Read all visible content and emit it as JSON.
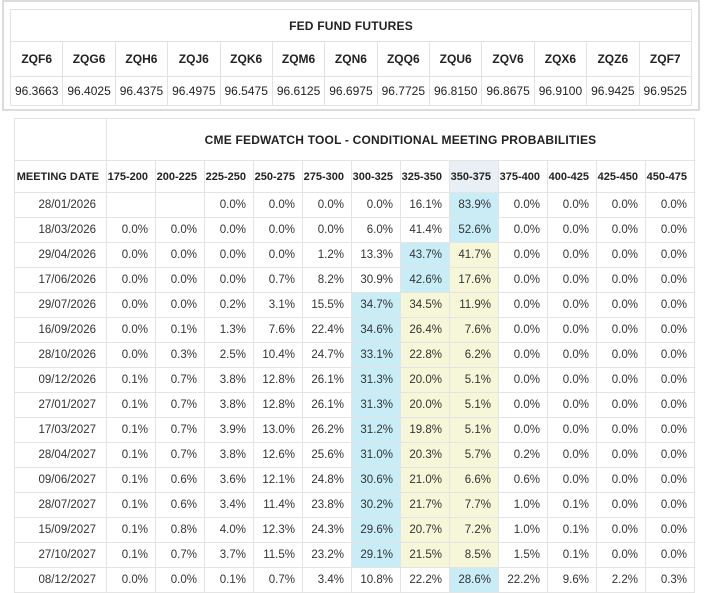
{
  "futures": {
    "title": "FED FUND FUTURES",
    "contracts": [
      "ZQF6",
      "ZQG6",
      "ZQH6",
      "ZQJ6",
      "ZQK6",
      "ZQM6",
      "ZQN6",
      "ZQQ6",
      "ZQU6",
      "ZQV6",
      "ZQX6",
      "ZQZ6",
      "ZQF7"
    ],
    "prices": [
      "96.3663",
      "96.4025",
      "96.4375",
      "96.4975",
      "96.5475",
      "96.6125",
      "96.6975",
      "96.7725",
      "96.8150",
      "96.8675",
      "96.9100",
      "96.9425",
      "96.9525"
    ]
  },
  "fedwatch": {
    "title": "CME FEDWATCH TOOL - CONDITIONAL MEETING PROBABILITIES",
    "date_header": "MEETING DATE",
    "rate_ranges": [
      "175-200",
      "200-225",
      "225-250",
      "250-275",
      "275-300",
      "300-325",
      "325-350",
      "350-375",
      "375-400",
      "400-425",
      "425-450",
      "450-475"
    ],
    "current_range": "350-375",
    "highlight_colors": {
      "max_cell": "#c8edf7",
      "secondary_cell": "#f6f6d9",
      "current_range_header": "#e9f0f5"
    },
    "rows": [
      {
        "date": "28/01/2026",
        "values": [
          "",
          "",
          "0.0%",
          "0.0%",
          "0.0%",
          "0.0%",
          "16.1%",
          "83.9%",
          "0.0%",
          "0.0%",
          "0.0%",
          "0.0%"
        ],
        "hl": [
          "",
          "",
          "",
          "",
          "",
          "",
          "",
          "c",
          "",
          "",
          "",
          ""
        ]
      },
      {
        "date": "18/03/2026",
        "values": [
          "0.0%",
          "0.0%",
          "0.0%",
          "0.0%",
          "0.0%",
          "6.0%",
          "41.4%",
          "52.6%",
          "0.0%",
          "0.0%",
          "0.0%",
          "0.0%"
        ],
        "hl": [
          "",
          "",
          "",
          "",
          "",
          "",
          "",
          "c",
          "",
          "",
          "",
          ""
        ]
      },
      {
        "date": "29/04/2026",
        "values": [
          "0.0%",
          "0.0%",
          "0.0%",
          "0.0%",
          "1.2%",
          "13.3%",
          "43.7%",
          "41.7%",
          "0.0%",
          "0.0%",
          "0.0%",
          "0.0%"
        ],
        "hl": [
          "",
          "",
          "",
          "",
          "",
          "",
          "c",
          "y",
          "",
          "",
          "",
          ""
        ]
      },
      {
        "date": "17/06/2026",
        "values": [
          "0.0%",
          "0.0%",
          "0.0%",
          "0.7%",
          "8.2%",
          "30.9%",
          "42.6%",
          "17.6%",
          "0.0%",
          "0.0%",
          "0.0%",
          "0.0%"
        ],
        "hl": [
          "",
          "",
          "",
          "",
          "",
          "",
          "c",
          "y",
          "",
          "",
          "",
          ""
        ]
      },
      {
        "date": "29/07/2026",
        "values": [
          "0.0%",
          "0.0%",
          "0.2%",
          "3.1%",
          "15.5%",
          "34.7%",
          "34.5%",
          "11.9%",
          "0.0%",
          "0.0%",
          "0.0%",
          "0.0%"
        ],
        "hl": [
          "",
          "",
          "",
          "",
          "",
          "c",
          "y",
          "y",
          "",
          "",
          "",
          ""
        ]
      },
      {
        "date": "16/09/2026",
        "values": [
          "0.0%",
          "0.1%",
          "1.3%",
          "7.6%",
          "22.4%",
          "34.6%",
          "26.4%",
          "7.6%",
          "0.0%",
          "0.0%",
          "0.0%",
          "0.0%"
        ],
        "hl": [
          "",
          "",
          "",
          "",
          "",
          "c",
          "y",
          "y",
          "",
          "",
          "",
          ""
        ]
      },
      {
        "date": "28/10/2026",
        "values": [
          "0.0%",
          "0.3%",
          "2.5%",
          "10.4%",
          "24.7%",
          "33.1%",
          "22.8%",
          "6.2%",
          "0.0%",
          "0.0%",
          "0.0%",
          "0.0%"
        ],
        "hl": [
          "",
          "",
          "",
          "",
          "",
          "c",
          "y",
          "y",
          "",
          "",
          "",
          ""
        ]
      },
      {
        "date": "09/12/2026",
        "values": [
          "0.1%",
          "0.7%",
          "3.8%",
          "12.8%",
          "26.1%",
          "31.3%",
          "20.0%",
          "5.1%",
          "0.0%",
          "0.0%",
          "0.0%",
          "0.0%"
        ],
        "hl": [
          "",
          "",
          "",
          "",
          "",
          "c",
          "y",
          "y",
          "",
          "",
          "",
          ""
        ]
      },
      {
        "date": "27/01/2027",
        "values": [
          "0.1%",
          "0.7%",
          "3.8%",
          "12.8%",
          "26.1%",
          "31.3%",
          "20.0%",
          "5.1%",
          "0.0%",
          "0.0%",
          "0.0%",
          "0.0%"
        ],
        "hl": [
          "",
          "",
          "",
          "",
          "",
          "c",
          "y",
          "y",
          "",
          "",
          "",
          ""
        ]
      },
      {
        "date": "17/03/2027",
        "values": [
          "0.1%",
          "0.7%",
          "3.9%",
          "13.0%",
          "26.2%",
          "31.2%",
          "19.8%",
          "5.1%",
          "0.0%",
          "0.0%",
          "0.0%",
          "0.0%"
        ],
        "hl": [
          "",
          "",
          "",
          "",
          "",
          "c",
          "y",
          "y",
          "",
          "",
          "",
          ""
        ]
      },
      {
        "date": "28/04/2027",
        "values": [
          "0.1%",
          "0.7%",
          "3.8%",
          "12.6%",
          "25.6%",
          "31.0%",
          "20.3%",
          "5.7%",
          "0.2%",
          "0.0%",
          "0.0%",
          "0.0%"
        ],
        "hl": [
          "",
          "",
          "",
          "",
          "",
          "c",
          "y",
          "y",
          "",
          "",
          "",
          ""
        ]
      },
      {
        "date": "09/06/2027",
        "values": [
          "0.1%",
          "0.6%",
          "3.6%",
          "12.1%",
          "24.8%",
          "30.6%",
          "21.0%",
          "6.6%",
          "0.6%",
          "0.0%",
          "0.0%",
          "0.0%"
        ],
        "hl": [
          "",
          "",
          "",
          "",
          "",
          "c",
          "y",
          "y",
          "",
          "",
          "",
          ""
        ]
      },
      {
        "date": "28/07/2027",
        "values": [
          "0.1%",
          "0.6%",
          "3.4%",
          "11.4%",
          "23.8%",
          "30.2%",
          "21.7%",
          "7.7%",
          "1.0%",
          "0.1%",
          "0.0%",
          "0.0%"
        ],
        "hl": [
          "",
          "",
          "",
          "",
          "",
          "c",
          "y",
          "y",
          "",
          "",
          "",
          ""
        ]
      },
      {
        "date": "15/09/2027",
        "values": [
          "0.1%",
          "0.8%",
          "4.0%",
          "12.3%",
          "24.3%",
          "29.6%",
          "20.7%",
          "7.2%",
          "1.0%",
          "0.1%",
          "0.0%",
          "0.0%"
        ],
        "hl": [
          "",
          "",
          "",
          "",
          "",
          "c",
          "y",
          "y",
          "",
          "",
          "",
          ""
        ]
      },
      {
        "date": "27/10/2027",
        "values": [
          "0.1%",
          "0.7%",
          "3.7%",
          "11.5%",
          "23.2%",
          "29.1%",
          "21.5%",
          "8.5%",
          "1.5%",
          "0.1%",
          "0.0%",
          "0.0%"
        ],
        "hl": [
          "",
          "",
          "",
          "",
          "",
          "c",
          "y",
          "y",
          "",
          "",
          "",
          ""
        ]
      },
      {
        "date": "08/12/2027",
        "values": [
          "0.0%",
          "0.0%",
          "0.1%",
          "0.7%",
          "3.4%",
          "10.8%",
          "22.2%",
          "28.6%",
          "22.2%",
          "9.6%",
          "2.2%",
          "0.3%"
        ],
        "hl": [
          "",
          "",
          "",
          "",
          "",
          "",
          "",
          "c",
          "",
          "",
          "",
          ""
        ]
      }
    ]
  }
}
